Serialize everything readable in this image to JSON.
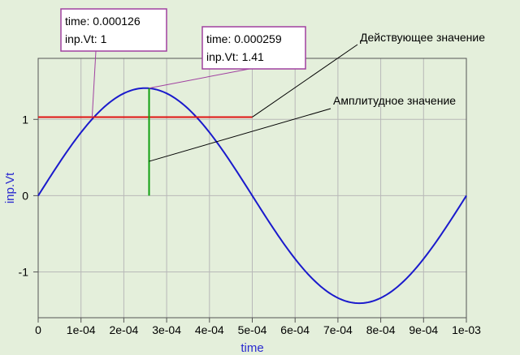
{
  "chart_data": {
    "type": "line",
    "title": "",
    "xlabel": "time",
    "ylabel": "inp.Vt",
    "xlim": [
      0,
      0.001
    ],
    "ylim": [
      -1.6,
      1.8
    ],
    "grid": true,
    "x_ticks": [
      0,
      0.0001,
      0.0002,
      0.0003,
      0.0004,
      0.0005,
      0.0006,
      0.0007,
      0.0008,
      0.0009,
      0.001
    ],
    "x_tick_labels": [
      "0",
      "1e-04",
      "2e-04",
      "3e-04",
      "4e-04",
      "5e-04",
      "6e-04",
      "7e-04",
      "8e-04",
      "9e-04",
      "1e-03"
    ],
    "y_ticks": [
      -1,
      0,
      1
    ],
    "y_tick_labels": [
      "-1",
      "0",
      "1"
    ],
    "series": [
      {
        "amplitude": 1.41,
        "period": 0.001,
        "x": [
          0,
          5e-05,
          0.0001,
          0.00015,
          0.0002,
          0.00025,
          0.0003,
          0.00035,
          0.0004,
          0.00045,
          0.0005,
          0.00055,
          0.0006,
          0.00065,
          0.0007,
          0.00075,
          0.0008,
          0.00085,
          0.0009,
          0.00095,
          0.001
        ],
        "values": [
          0,
          0.436,
          0.829,
          1.141,
          1.341,
          1.41,
          1.341,
          1.141,
          0.829,
          0.436,
          0,
          -0.436,
          -0.829,
          -1.141,
          -1.341,
          -1.41,
          -1.341,
          -1.141,
          -0.829,
          -0.436,
          0
        ],
        "color": "#1a1acc"
      }
    ],
    "markers": {
      "rms_line": {
        "y": 1.03,
        "x": [
          0,
          0.0005
        ],
        "color": "#e01414"
      },
      "amplitude_line": {
        "x": 0.000259,
        "y": [
          0,
          1.41
        ],
        "color": "#10a010"
      }
    },
    "tooltips": [
      {
        "lines": [
          "time: 0.000126",
          "inp.Vt: 1"
        ],
        "point": [
          0.000126,
          1.03
        ],
        "border": "#a040a0"
      },
      {
        "lines": [
          "time: 0.000259",
          "inp.Vt: 1.41"
        ],
        "point": [
          0.000259,
          1.41
        ],
        "border": "#a040a0"
      }
    ],
    "annotations": [
      {
        "text": "Действующее значение",
        "target": [
          0.0005,
          1.03
        ]
      },
      {
        "text": "Амплитудное значение",
        "target": [
          0.000259,
          0.45
        ]
      }
    ]
  },
  "colors": {
    "background": "#e4efdb",
    "plot_area": "#e4efdb",
    "grid": "#b8b8b8",
    "axis_text": "#2a2ad0"
  }
}
